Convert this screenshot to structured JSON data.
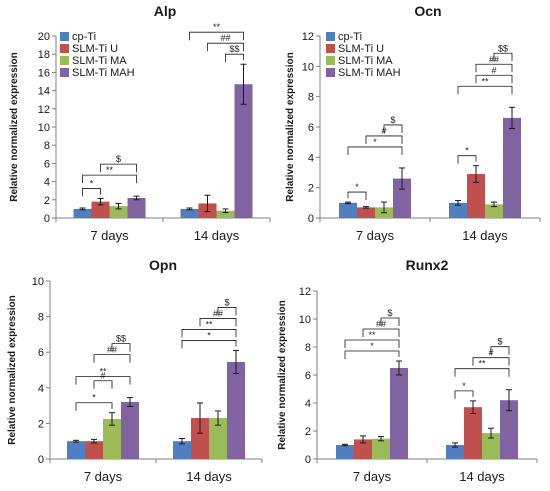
{
  "chart_data": [
    {
      "type": "bar",
      "title": "Alp",
      "ylabel": "Relative normalized expression",
      "ylim": [
        0,
        20
      ],
      "yticks": [
        0,
        2,
        4,
        6,
        8,
        10,
        12,
        14,
        16,
        18,
        20
      ],
      "categories": [
        "7 days",
        "14 days"
      ],
      "legend": "top-left",
      "series": [
        {
          "name": "cp-Ti",
          "color": "#4f7fc0",
          "values": [
            1.0,
            1.0
          ],
          "errors": [
            0.1,
            0.1
          ]
        },
        {
          "name": "SLM-Ti U",
          "color": "#c0504d",
          "values": [
            1.8,
            1.6
          ],
          "errors": [
            0.35,
            0.9
          ]
        },
        {
          "name": "SLM-Ti MA",
          "color": "#9bbb59",
          "values": [
            1.3,
            0.8
          ],
          "errors": [
            0.3,
            0.2
          ]
        },
        {
          "name": "SLM-Ti MAH",
          "color": "#8064a2",
          "values": [
            2.2,
            14.7
          ],
          "errors": [
            0.2,
            2.2
          ]
        }
      ],
      "annotations": [
        {
          "text": "*",
          "group": 0,
          "from": 0,
          "to": 1,
          "level": 0
        },
        {
          "text": "**",
          "group": 0,
          "from": 0,
          "to": 3,
          "level": 1
        },
        {
          "text": "$",
          "group": 0,
          "from": 1,
          "to": 3,
          "level": 2
        },
        {
          "text": "$$",
          "group": 1,
          "from": 2,
          "to": 3,
          "level": 0
        },
        {
          "text": "##",
          "group": 1,
          "from": 1,
          "to": 3,
          "level": 1
        },
        {
          "text": "**",
          "group": 1,
          "from": 0,
          "to": 3,
          "level": 2
        }
      ]
    },
    {
      "type": "bar",
      "title": "Ocn",
      "ylabel": "Relative normalized expression",
      "ylim": [
        0,
        12
      ],
      "yticks": [
        0,
        2,
        4,
        6,
        8,
        10,
        12
      ],
      "categories": [
        "7 days",
        "14 days"
      ],
      "legend": "top-left",
      "series": [
        {
          "name": "cp-Ti",
          "color": "#4f7fc0",
          "values": [
            1.0,
            1.0
          ],
          "errors": [
            0.05,
            0.15
          ]
        },
        {
          "name": "SLM-Ti U",
          "color": "#c0504d",
          "values": [
            0.7,
            2.9
          ],
          "errors": [
            0.05,
            0.55
          ]
        },
        {
          "name": "SLM-Ti MA",
          "color": "#9bbb59",
          "values": [
            0.7,
            0.9
          ],
          "errors": [
            0.35,
            0.15
          ]
        },
        {
          "name": "SLM-Ti MAH",
          "color": "#8064a2",
          "values": [
            2.6,
            6.6
          ],
          "errors": [
            0.7,
            0.7
          ]
        }
      ],
      "annotations": [
        {
          "text": "*",
          "group": 0,
          "from": 0,
          "to": 1,
          "level": 0
        },
        {
          "text": "*",
          "group": 0,
          "from": 0,
          "to": 3,
          "level": 1
        },
        {
          "text": "#",
          "group": 0,
          "from": 1,
          "to": 3,
          "level": 2
        },
        {
          "text": "$",
          "group": 0,
          "from": 2,
          "to": 3,
          "level": 3
        },
        {
          "text": "*",
          "group": 1,
          "from": 0,
          "to": 1,
          "level": 0
        },
        {
          "text": "**",
          "group": 1,
          "from": 0,
          "to": 3,
          "level": 1
        },
        {
          "text": "#",
          "group": 1,
          "from": 1,
          "to": 3,
          "level": 2
        },
        {
          "text": "##",
          "group": 1,
          "from": 1,
          "to": 3,
          "level": 3
        },
        {
          "text": "$$",
          "group": 1,
          "from": 2,
          "to": 3,
          "level": 4
        }
      ]
    },
    {
      "type": "bar",
      "title": "Opn",
      "ylabel": "Relative normalized expression",
      "ylim": [
        0,
        10
      ],
      "yticks": [
        0,
        2,
        4,
        6,
        8,
        10
      ],
      "categories": [
        "7 days",
        "14 days"
      ],
      "series": [
        {
          "name": "cp-Ti",
          "color": "#4f7fc0",
          "values": [
            1.0,
            1.0
          ],
          "errors": [
            0.05,
            0.15
          ]
        },
        {
          "name": "SLM-Ti U",
          "color": "#c0504d",
          "values": [
            1.0,
            2.3
          ],
          "errors": [
            0.1,
            0.85
          ]
        },
        {
          "name": "SLM-Ti MA",
          "color": "#9bbb59",
          "values": [
            2.25,
            2.3
          ],
          "errors": [
            0.35,
            0.4
          ]
        },
        {
          "name": "SLM-Ti MAH",
          "color": "#8064a2",
          "values": [
            3.2,
            5.45
          ],
          "errors": [
            0.25,
            0.65
          ]
        }
      ],
      "annotations": [
        {
          "text": "*",
          "group": 0,
          "from": 0,
          "to": 2,
          "level": 0
        },
        {
          "text": "**",
          "group": 0,
          "from": 0,
          "to": 3,
          "level": 1
        },
        {
          "text": "#",
          "group": 0,
          "from": 1,
          "to": 2,
          "level": 2
        },
        {
          "text": "##",
          "group": 0,
          "from": 1,
          "to": 3,
          "level": 3
        },
        {
          "text": "$$",
          "group": 0,
          "from": 2,
          "to": 3,
          "level": 4
        },
        {
          "text": "*",
          "group": 1,
          "from": 0,
          "to": 3,
          "level": 0
        },
        {
          "text": "**",
          "group": 1,
          "from": 0,
          "to": 3,
          "level": 1
        },
        {
          "text": "##",
          "group": 1,
          "from": 1,
          "to": 3,
          "level": 2
        },
        {
          "text": "$",
          "group": 1,
          "from": 2,
          "to": 3,
          "level": 3
        }
      ]
    },
    {
      "type": "bar",
      "title": "Runx2",
      "ylabel": "Relative normalized expression",
      "ylim": [
        0,
        12
      ],
      "yticks": [
        0,
        2,
        4,
        6,
        8,
        10,
        12
      ],
      "categories": [
        "7 days",
        "14 days"
      ],
      "series": [
        {
          "name": "cp-Ti",
          "color": "#4f7fc0",
          "values": [
            1.0,
            1.0
          ],
          "errors": [
            0.05,
            0.15
          ]
        },
        {
          "name": "SLM-Ti U",
          "color": "#c0504d",
          "values": [
            1.4,
            3.7
          ],
          "errors": [
            0.25,
            0.45
          ]
        },
        {
          "name": "SLM-Ti MA",
          "color": "#9bbb59",
          "values": [
            1.45,
            1.85
          ],
          "errors": [
            0.15,
            0.35
          ]
        },
        {
          "name": "SLM-Ti MAH",
          "color": "#8064a2",
          "values": [
            6.5,
            4.2
          ],
          "errors": [
            0.5,
            0.75
          ]
        }
      ],
      "annotations": [
        {
          "text": "*",
          "group": 0,
          "from": 0,
          "to": 3,
          "level": 0
        },
        {
          "text": "**",
          "group": 0,
          "from": 0,
          "to": 3,
          "level": 1
        },
        {
          "text": "##",
          "group": 0,
          "from": 1,
          "to": 3,
          "level": 2
        },
        {
          "text": "$",
          "group": 0,
          "from": 2,
          "to": 3,
          "level": 3
        },
        {
          "text": "*",
          "group": 1,
          "from": 0,
          "to": 1,
          "level": 0
        },
        {
          "text": "**",
          "group": 1,
          "from": 0,
          "to": 3,
          "level": 1
        },
        {
          "text": "#",
          "group": 1,
          "from": 1,
          "to": 3,
          "level": 2
        },
        {
          "text": "$",
          "group": 1,
          "from": 2,
          "to": 3,
          "level": 3
        }
      ]
    }
  ]
}
